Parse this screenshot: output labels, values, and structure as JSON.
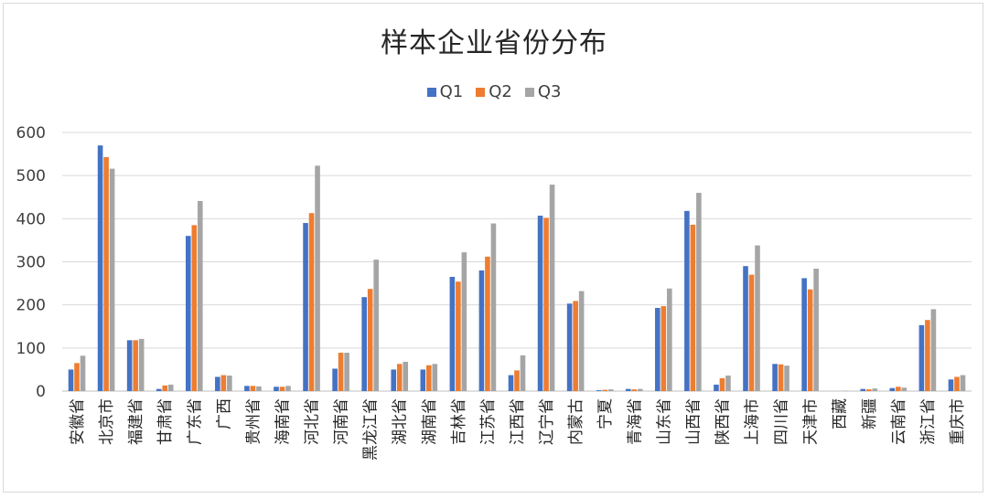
{
  "chart_data": {
    "type": "bar",
    "title": "样本企业省份分布",
    "xlabel": "",
    "ylabel": "",
    "ylim": [
      0,
      600
    ],
    "yticks": [
      0,
      100,
      200,
      300,
      400,
      500,
      600
    ],
    "grid": true,
    "legend_position": "top",
    "categories": [
      "安徽省",
      "北京市",
      "福建省",
      "甘肃省",
      "广东省",
      "广西",
      "贵州省",
      "海南省",
      "河北省",
      "河南省",
      "黑龙江省",
      "湖北省",
      "湖南省",
      "吉林省",
      "江苏省",
      "江西省",
      "辽宁省",
      "内蒙古",
      "宁夏",
      "青海省",
      "山东省",
      "山西省",
      "陕西省",
      "上海市",
      "四川省",
      "天津市",
      "西藏",
      "新疆",
      "云南省",
      "浙江省",
      "重庆市"
    ],
    "series": [
      {
        "name": "Q1",
        "color": "#4472c4",
        "values": [
          50,
          570,
          118,
          5,
          360,
          33,
          12,
          10,
          390,
          52,
          218,
          50,
          50,
          265,
          280,
          37,
          407,
          203,
          2,
          5,
          193,
          418,
          15,
          290,
          63,
          262,
          0,
          5,
          7,
          153,
          27
        ]
      },
      {
        "name": "Q2",
        "color": "#ed7d31",
        "values": [
          65,
          543,
          118,
          13,
          385,
          37,
          12,
          10,
          413,
          89,
          237,
          63,
          60,
          254,
          312,
          48,
          402,
          209,
          3,
          4,
          197,
          386,
          30,
          270,
          62,
          236,
          0,
          4,
          10,
          165,
          33
        ]
      },
      {
        "name": "Q3",
        "color": "#a5a5a5",
        "values": [
          82,
          516,
          121,
          15,
          441,
          36,
          11,
          12,
          523,
          89,
          305,
          68,
          63,
          322,
          389,
          83,
          479,
          232,
          4,
          5,
          238,
          460,
          36,
          338,
          59,
          284,
          1,
          6,
          8,
          190,
          37
        ]
      }
    ]
  }
}
